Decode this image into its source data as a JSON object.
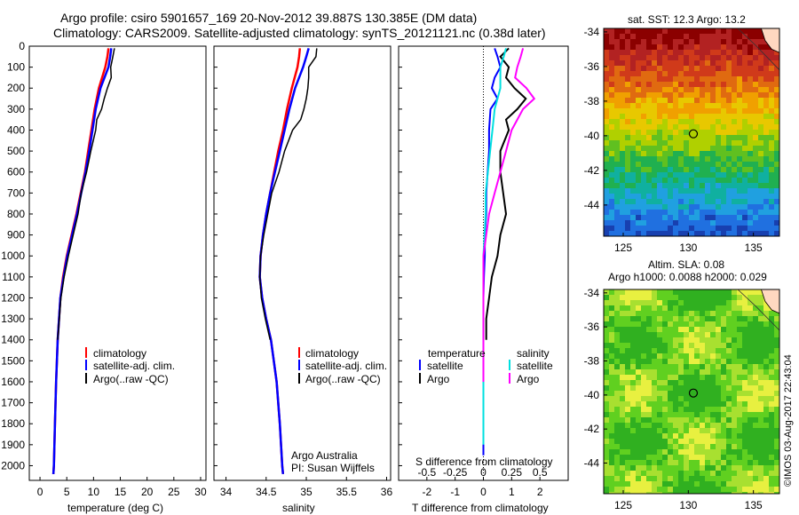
{
  "title": {
    "line1": "Argo profile: csiro 5901657_169 20-Nov-2012 39.887S 130.385E (DM data)",
    "line2": "Climatology: CARS2009. Satellite-adjusted climatology: synTS_20121121.nc (0.38d later)"
  },
  "colors": {
    "climatology": "#ff0000",
    "satellite": "#0000ff",
    "argo": "#000000",
    "s_satellite": "#00e0e0",
    "s_argo": "#ff00ff"
  },
  "depth_ticks": [
    0,
    100,
    200,
    300,
    400,
    500,
    600,
    700,
    800,
    900,
    1000,
    1100,
    1200,
    1300,
    1400,
    1500,
    1600,
    1700,
    1800,
    1900,
    2000
  ],
  "chart_data": [
    {
      "type": "line",
      "panel": "temperature",
      "xlabel": "temperature (deg C)",
      "xlim": [
        -2,
        31
      ],
      "ylim": [
        2070,
        0
      ],
      "xticks": [
        "0",
        "5",
        "10",
        "15",
        "20",
        "25",
        "30"
      ],
      "legend": [
        "climatology",
        "satellite-adj. clim.",
        "Argo(..raw -QC)"
      ],
      "series": [
        {
          "name": "climatology",
          "y": [
            10,
            50,
            100,
            200,
            300,
            400,
            500,
            600,
            700,
            800,
            900,
            1000,
            1100,
            1200,
            1400,
            1600,
            1800,
            2000,
            2040
          ],
          "x": [
            12.8,
            12.6,
            12.2,
            11.0,
            10.2,
            9.6,
            9.0,
            8.4,
            7.6,
            6.8,
            5.9,
            5.0,
            4.3,
            3.8,
            3.3,
            3.0,
            2.8,
            2.6,
            2.5
          ]
        },
        {
          "name": "satellite-adj. clim.",
          "y": [
            10,
            50,
            100,
            200,
            300,
            400,
            500,
            600,
            700,
            800,
            900,
            1000,
            1100,
            1200,
            1400,
            1600,
            1800,
            2000,
            2040
          ],
          "x": [
            13.3,
            13.1,
            12.8,
            11.3,
            10.4,
            9.8,
            9.2,
            8.5,
            7.7,
            6.9,
            6.0,
            5.1,
            4.4,
            3.8,
            3.3,
            3.0,
            2.8,
            2.6,
            2.5
          ]
        },
        {
          "name": "Argo(..raw -QC)",
          "y": [
            10,
            50,
            100,
            150,
            200,
            250,
            300,
            350,
            400,
            500,
            600,
            700,
            800,
            900,
            1000,
            1100,
            1200,
            1400
          ],
          "x": [
            13.9,
            13.6,
            13.2,
            13.3,
            12.6,
            12.0,
            11.5,
            10.6,
            10.4,
            9.5,
            8.7,
            7.7,
            7.1,
            6.2,
            5.3,
            4.5,
            3.9,
            3.3
          ]
        }
      ],
      "annotation": ""
    },
    {
      "type": "line",
      "panel": "salinity",
      "xlabel": "salinity",
      "xlim": [
        33.85,
        36.05
      ],
      "ylim": [
        2070,
        0
      ],
      "xticks": [
        "34",
        "34.5",
        "35",
        "35.5",
        "36"
      ],
      "legend": [
        "climatology",
        "satellite-adj. clim.",
        "Argo(..raw -QC)"
      ],
      "annotation": "Argo Australia",
      "annotation2": "PI: Susan Wijffels",
      "series": [
        {
          "name": "climatology",
          "y": [
            10,
            50,
            100,
            200,
            300,
            400,
            500,
            600,
            700,
            800,
            900,
            1000,
            1100,
            1200,
            1300,
            1400,
            1600,
            1800,
            2000,
            2040
          ],
          "x": [
            34.92,
            34.91,
            34.89,
            34.82,
            34.76,
            34.71,
            34.65,
            34.6,
            34.55,
            34.5,
            34.46,
            34.43,
            34.42,
            34.45,
            34.5,
            34.56,
            34.63,
            34.67,
            34.7,
            34.71
          ]
        },
        {
          "name": "satellite-adj. clim.",
          "y": [
            10,
            50,
            100,
            200,
            300,
            400,
            500,
            600,
            700,
            800,
            900,
            1000,
            1100,
            1200,
            1300,
            1400,
            1600,
            1800,
            2000,
            2040
          ],
          "x": [
            35.03,
            35.0,
            34.96,
            34.86,
            34.79,
            34.73,
            34.67,
            34.61,
            34.55,
            34.5,
            34.46,
            34.43,
            34.42,
            34.45,
            34.5,
            34.56,
            34.63,
            34.67,
            34.7,
            34.71
          ]
        },
        {
          "name": "Argo(..raw -QC)",
          "y": [
            10,
            50,
            100,
            150,
            200,
            250,
            300,
            350,
            400,
            500,
            600,
            700,
            800,
            900,
            1000,
            1100,
            1200,
            1300,
            1400
          ],
          "x": [
            35.13,
            35.12,
            35.03,
            35.03,
            35.02,
            35.0,
            34.97,
            34.93,
            34.83,
            34.73,
            34.66,
            34.57,
            34.52,
            34.47,
            34.43,
            34.42,
            34.44,
            34.49,
            34.55
          ]
        }
      ]
    },
    {
      "type": "line",
      "panel": "difference",
      "xlabel": "T difference from climatology",
      "xlabel2": "S difference from climatology",
      "xlim": [
        -3,
        3
      ],
      "ylim": [
        2070,
        0
      ],
      "xticks": [
        "-2",
        "-1",
        "0",
        "1",
        "2"
      ],
      "xticks2": [
        "-0.5",
        "-0.25",
        "0",
        "0.25",
        "0.5"
      ],
      "legend_t_head": "temperature",
      "legend_s_head": "salinity",
      "legend": [
        "satellite",
        "Argo",
        "satellite",
        "Argo"
      ],
      "series": [
        {
          "name": "temperature satellite",
          "y": [
            10,
            50,
            100,
            150,
            200,
            250,
            300,
            400,
            500,
            600,
            700,
            800,
            900,
            1000,
            1100,
            1200,
            1300,
            1400,
            1600,
            1800,
            1950
          ],
          "x": [
            0.4,
            0.5,
            0.6,
            0.4,
            0.3,
            0.5,
            0.25,
            0.2,
            0.2,
            0.15,
            0.1,
            0.1,
            0.05,
            0.05,
            0.02,
            0.0,
            0.0,
            0.0,
            0.0,
            0.0,
            0.0
          ]
        },
        {
          "name": "temperature Argo",
          "y": [
            10,
            50,
            100,
            150,
            200,
            250,
            300,
            350,
            400,
            500,
            600,
            700,
            800,
            900,
            1000,
            1100,
            1200,
            1300,
            1400
          ],
          "x": [
            0.9,
            0.6,
            0.9,
            0.8,
            1.1,
            1.5,
            1.2,
            0.8,
            0.9,
            0.6,
            0.6,
            0.7,
            0.8,
            0.6,
            0.5,
            0.3,
            0.2,
            0.1,
            0.1
          ]
        },
        {
          "name": "salinity satellite",
          "y": [
            10,
            50,
            100,
            200,
            300,
            400,
            500,
            600,
            700,
            800,
            900,
            1000,
            1200,
            1500,
            1900
          ],
          "x": [
            0.2,
            0.18,
            0.15,
            0.15,
            0.1,
            0.08,
            0.06,
            0.04,
            0.02,
            0.02,
            0.01,
            0.0,
            0.0,
            0.0,
            0.0
          ]
        },
        {
          "name": "salinity Argo",
          "y": [
            10,
            50,
            100,
            150,
            200,
            250,
            300,
            400,
            500,
            600,
            700,
            800,
            1000,
            1100,
            1200,
            1400,
            1600
          ],
          "x": [
            0.35,
            0.33,
            0.3,
            0.28,
            0.38,
            0.45,
            0.35,
            0.25,
            0.2,
            0.15,
            0.1,
            0.05,
            0.0,
            0.0,
            0.0,
            0.0,
            0.0
          ]
        }
      ]
    },
    {
      "type": "heatmap",
      "panel": "sst_map",
      "title": "sat. SST: 12.3 Argo: 13.2",
      "xticks": [
        "125",
        "130",
        "135"
      ],
      "yticks": [
        "-34",
        "-36",
        "-38",
        "-40",
        "-42",
        "-44"
      ],
      "xlim": [
        123.5,
        137
      ],
      "ylim": [
        -45.8,
        -33.8
      ],
      "marker": {
        "lon": 130.385,
        "lat": -39.887
      }
    },
    {
      "type": "heatmap",
      "panel": "sla_map",
      "title": "Altim. SLA: 0.08",
      "subtitle": "Argo h1000: 0.0088 h2000: 0.029",
      "xticks": [
        "125",
        "130",
        "135"
      ],
      "yticks": [
        "-34",
        "-36",
        "-38",
        "-40",
        "-42",
        "-44"
      ],
      "xlim": [
        123.5,
        137
      ],
      "ylim": [
        -45.8,
        -33.8
      ],
      "marker": {
        "lon": 130.385,
        "lat": -39.887
      }
    }
  ],
  "credit": "©IMOS 03-Aug-2017 22:43:04"
}
